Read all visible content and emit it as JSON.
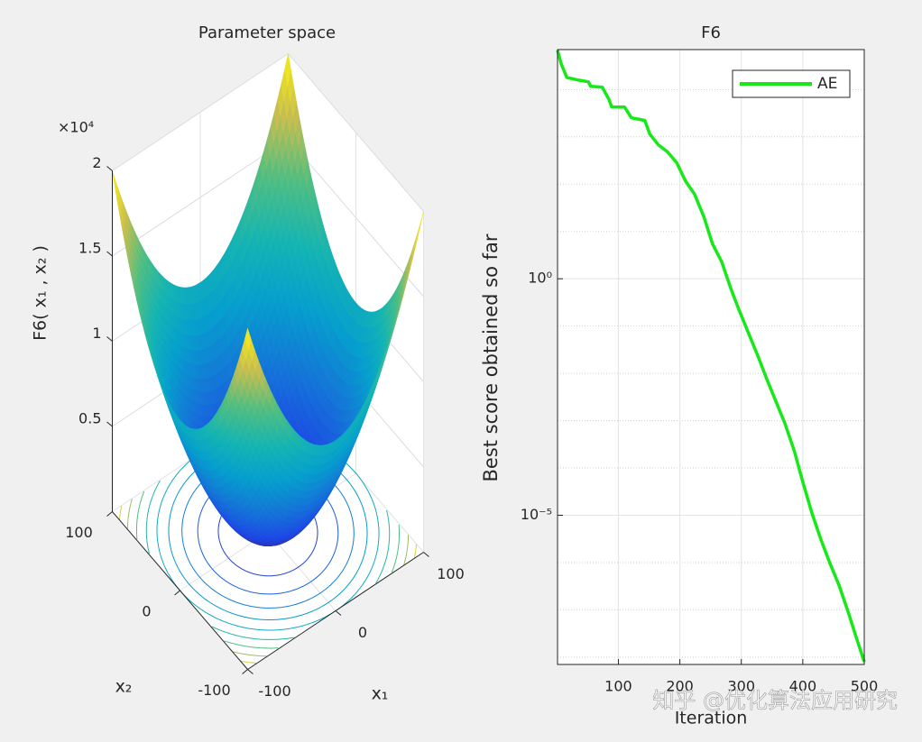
{
  "chart_data": [
    {
      "type": "surface3d",
      "title": "Parameter space",
      "xlabel": "x₁",
      "ylabel": "x₂",
      "zlabel": "F6( x₁ , x₂ )",
      "xlim": [
        -100,
        100
      ],
      "xticks": [
        -100,
        0,
        100
      ],
      "ylim": [
        -100,
        100
      ],
      "yticks": [
        -100,
        0,
        100
      ],
      "zlim": [
        0,
        20000
      ],
      "zticks": [
        {
          "value": 5000,
          "label": "0.5"
        },
        {
          "value": 10000,
          "label": "1"
        },
        {
          "value": 15000,
          "label": "1.5"
        },
        {
          "value": 20000,
          "label": "2"
        }
      ],
      "zexponent_label": "×10⁴",
      "contour": true
    },
    {
      "type": "line",
      "title": "F6",
      "xlabel": "Iteration",
      "ylabel": "Best score obtained so far",
      "yscale": "log",
      "xlim": [
        1,
        500
      ],
      "xticks": [
        100,
        200,
        300,
        400,
        500
      ],
      "ylim": [
        7e-09,
        70000
      ],
      "yticks": [
        {
          "value": 1,
          "label": "10⁰"
        },
        {
          "value": 1e-05,
          "label": "10⁻⁵"
        }
      ],
      "yminorticks": [
        10000,
        1000,
        100,
        10,
        0.1,
        0.01,
        0.001,
        0.0001,
        1e-06,
        1e-07,
        1e-08
      ],
      "grid": true,
      "legend": "northeast",
      "x": [
        1,
        7,
        16,
        33,
        51,
        55,
        74,
        85,
        89,
        110,
        121,
        143,
        151,
        165,
        180,
        195,
        209,
        224,
        239,
        253,
        268,
        283,
        297,
        312,
        327,
        341,
        356,
        371,
        386,
        400,
        415,
        430,
        444,
        459,
        474,
        488,
        500
      ],
      "series": [
        {
          "name": "AE",
          "color": "#17e817",
          "values": [
            67600,
            35000,
            18000,
            16000,
            14600,
            11700,
            11200,
            6070,
            4280,
            4280,
            2530,
            2220,
            1150,
            681,
            480,
            283,
            118,
            61.2,
            20.5,
            5.51,
            2.3,
            0.618,
            0.207,
            0.0692,
            0.0232,
            0.00776,
            0.0026,
            0.000869,
            0.000234,
            5.05e-05,
            1.09e-05,
            2.94e-06,
            9.82e-07,
            3.29e-07,
            8.85e-08,
            2.38e-08,
            7.96e-09
          ]
        }
      ]
    }
  ],
  "watermark": "知乎 @优化算法应用研究"
}
